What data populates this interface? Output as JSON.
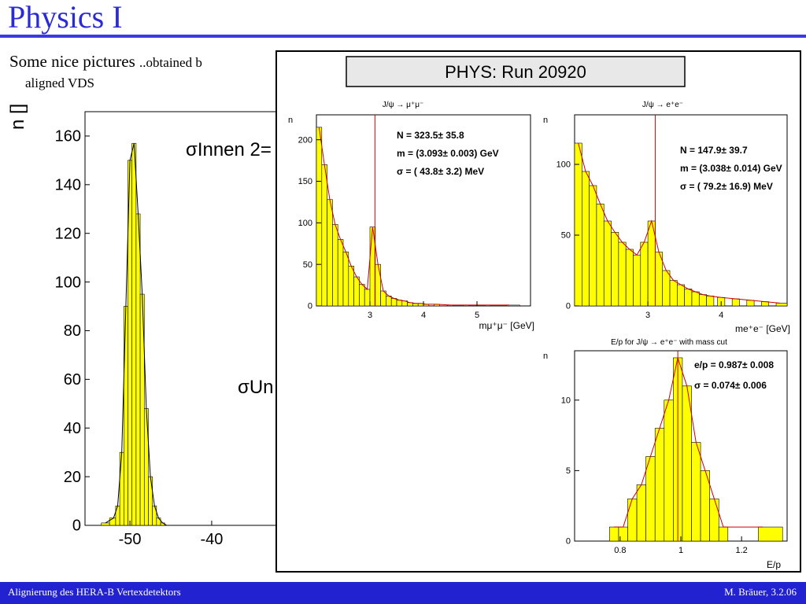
{
  "slide": {
    "title": "Physics I",
    "subtitle_main": "Some nice pictures",
    "subtitle_small": "..obtained b",
    "subtitle_line2": "aligned VDS",
    "footer_left": "Alignierung des HERA-B Vertexdetektors",
    "footer_right": "M. Bräuer, 3.2.06"
  },
  "colors": {
    "title": "#2b2bd6",
    "bar": "#2222d0",
    "hist_fill": "#ffff00",
    "fit": "#cc0000"
  },
  "panel": {
    "header": "PHYS: Run 20920"
  },
  "chart_data": [
    {
      "type": "bar",
      "ylabel": "n []",
      "xticks": [
        "-50",
        "-40"
      ],
      "yticks": [
        "0",
        "20",
        "40",
        "60",
        "80",
        "100",
        "120",
        "140",
        "160"
      ],
      "ylim": [
        0,
        170
      ],
      "xlim": [
        -55.5,
        -32
      ],
      "annotations": [
        "σInnen 2=",
        "σUn"
      ],
      "x": [
        -53,
        -52,
        -51.5,
        -51,
        -50.5,
        -50,
        -49.5,
        -49,
        -48.5,
        -48,
        -47.5,
        -47,
        -46.5,
        -46,
        -45.5
      ],
      "values": [
        1,
        3,
        8,
        30,
        90,
        150,
        157,
        128,
        95,
        48,
        20,
        8,
        3,
        1,
        0
      ]
    },
    {
      "type": "bar",
      "title": "J/ψ → μ⁺μ⁻",
      "ylabel": "n",
      "xlabel": "mμ⁺μ⁻ [GeV]",
      "xticks": [
        "3",
        "4",
        "5"
      ],
      "yticks": [
        "0",
        "50",
        "100",
        "150",
        "200"
      ],
      "xlim": [
        2.0,
        6.0
      ],
      "ylim": [
        0,
        230
      ],
      "stats": [
        "N =   323.5±  35.8",
        "m = (3.093± 0.003) GeV",
        "σ  = ( 43.8±   3.2) MeV"
      ],
      "peak": 3.093,
      "x": [
        2.05,
        2.15,
        2.25,
        2.35,
        2.45,
        2.55,
        2.65,
        2.75,
        2.85,
        2.95,
        3.05,
        3.15,
        3.25,
        3.35,
        3.45,
        3.55,
        3.65,
        3.75,
        3.85,
        3.95,
        4.05,
        4.25,
        4.5,
        4.8,
        5.2,
        5.6
      ],
      "values": [
        215,
        170,
        128,
        98,
        80,
        65,
        48,
        35,
        26,
        20,
        95,
        50,
        18,
        12,
        9,
        7,
        6,
        4,
        3,
        3,
        2,
        2,
        1,
        1,
        1,
        1
      ]
    },
    {
      "type": "bar",
      "title": "J/ψ → e⁺e⁻",
      "ylabel": "n",
      "xlabel": "me⁺e⁻ [GeV]",
      "xticks": [
        "3",
        "4"
      ],
      "yticks": [
        "0",
        "50",
        "100"
      ],
      "xlim": [
        2.0,
        4.9
      ],
      "ylim": [
        0,
        135
      ],
      "stats": [
        "N =   147.9±  39.7",
        "m = (3.038± 0.014) GeV",
        "σ  = ( 79.2±  16.9) MeV"
      ],
      "peak": 3.1,
      "x": [
        2.05,
        2.15,
        2.25,
        2.35,
        2.45,
        2.55,
        2.65,
        2.75,
        2.85,
        2.95,
        3.05,
        3.15,
        3.25,
        3.35,
        3.45,
        3.55,
        3.65,
        3.75,
        3.85,
        4.0,
        4.2,
        4.4,
        4.6,
        4.8
      ],
      "values": [
        115,
        95,
        85,
        72,
        60,
        52,
        45,
        40,
        36,
        45,
        60,
        38,
        25,
        18,
        15,
        12,
        10,
        8,
        7,
        6,
        5,
        4,
        3,
        2
      ]
    },
    {
      "type": "bar",
      "title": "E/p for J/ψ → e⁺e⁻ with mass cut",
      "ylabel": "n",
      "xlabel": "E/p",
      "xticks": [
        "0.8",
        "1",
        "1.2"
      ],
      "yticks": [
        "0",
        "5",
        "10"
      ],
      "xlim": [
        0.65,
        1.35
      ],
      "ylim": [
        0,
        13.5
      ],
      "stats": [
        "e/p = 0.987± 0.008",
        "σ    = 0.074± 0.006"
      ],
      "peak": 0.99,
      "x": [
        0.78,
        0.81,
        0.84,
        0.87,
        0.9,
        0.93,
        0.96,
        0.99,
        1.02,
        1.05,
        1.08,
        1.11,
        1.14,
        1.27
      ],
      "values": [
        1,
        1,
        3,
        4,
        6,
        8,
        10,
        13,
        11,
        7,
        5,
        3,
        1,
        1
      ]
    }
  ]
}
